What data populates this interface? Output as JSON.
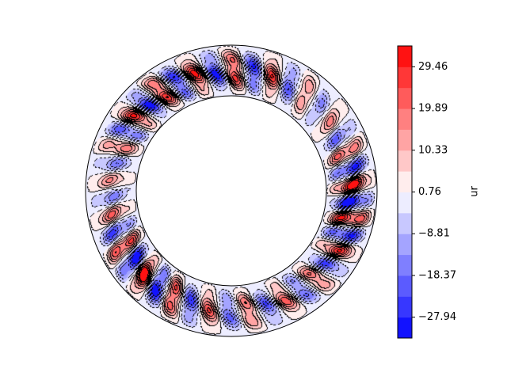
{
  "chart_data": {
    "type": "heatmap",
    "subtype": "filled contour on annulus (polar)",
    "title": "",
    "colormap": "bwr",
    "colorbar": {
      "label": "ur",
      "ticks": [
        29.46,
        19.89,
        10.33,
        0.76,
        -8.81,
        -18.37,
        -27.94
      ],
      "tick_labels": [
        "29.46",
        "19.89",
        "10.33",
        "0.76",
        "−8.81",
        "−18.37",
        "−27.94"
      ],
      "levels": [
        -32.72,
        -27.94,
        -23.16,
        -18.37,
        -13.59,
        -8.81,
        -4.02,
        0.76,
        5.54,
        10.33,
        15.11,
        19.89,
        24.68,
        29.46,
        34.24
      ],
      "range": [
        -32.72,
        34.24
      ]
    },
    "contour_lines": {
      "positive": "solid",
      "negative": "dashed",
      "color": "#000000"
    },
    "colors": {
      "min": "#0000ff",
      "mid": "#ffffff",
      "max": "#ff0000"
    }
  }
}
